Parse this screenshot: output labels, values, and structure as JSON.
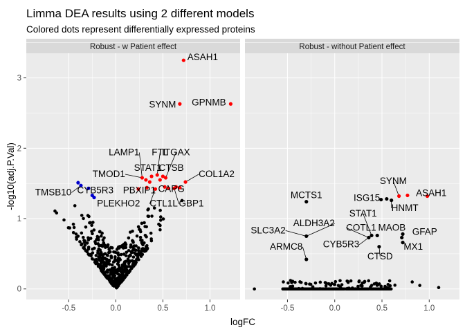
{
  "title": "Limma DEA results using 2 different models",
  "subtitle": "Colored dots represent differentially expressed proteins",
  "chart_data": {
    "type": "scatter",
    "title": "Limma DEA results using 2 different models",
    "subtitle": "Colored dots represent differentially expressed proteins",
    "xlabel": "logFC",
    "ylabel": "-log10(adj.P.Val)",
    "xlim": [
      -0.95,
      1.32
    ],
    "ylim": [
      -0.15,
      3.35
    ],
    "xticks": [
      -0.5,
      0.0,
      0.5,
      1.0
    ],
    "xtick_labels": [
      "-0.5",
      "0.0",
      "0.5",
      "1.0"
    ],
    "yticks": [
      0,
      1,
      2,
      3
    ],
    "ytick_labels": [
      "0",
      "1",
      "2",
      "3"
    ],
    "grid": true,
    "colors": {
      "not_significant": "#000000",
      "up": "#ff0000",
      "down": "#0000cd",
      "panel_bg": "#ebebeb",
      "strip_bg": "#d9d9d9",
      "grid": "#ffffff"
    },
    "panels": [
      {
        "strip": "Robust - w Patient effect",
        "points": [
          {
            "x": 0.72,
            "y": 3.25,
            "sig": "up"
          },
          {
            "x": 0.68,
            "y": 2.63,
            "sig": "up"
          },
          {
            "x": 1.22,
            "y": 2.63,
            "sig": "up"
          },
          {
            "x": 0.38,
            "y": 1.6,
            "sig": "up"
          },
          {
            "x": 0.44,
            "y": 1.62,
            "sig": "up"
          },
          {
            "x": 0.5,
            "y": 1.6,
            "sig": "up"
          },
          {
            "x": 0.53,
            "y": 1.58,
            "sig": "up"
          },
          {
            "x": 0.28,
            "y": 1.58,
            "sig": "up"
          },
          {
            "x": 0.32,
            "y": 1.55,
            "sig": "up"
          },
          {
            "x": 0.47,
            "y": 1.55,
            "sig": "up"
          },
          {
            "x": 0.36,
            "y": 1.52,
            "sig": "up"
          },
          {
            "x": 0.74,
            "y": 1.52,
            "sig": "up"
          },
          {
            "x": 0.52,
            "y": 1.45,
            "sig": "up"
          },
          {
            "x": 0.56,
            "y": 1.43,
            "sig": "up"
          },
          {
            "x": 0.64,
            "y": 1.45,
            "sig": "up"
          },
          {
            "x": 0.68,
            "y": 1.44,
            "sig": "up"
          },
          {
            "x": 0.33,
            "y": 1.44,
            "sig": "up"
          },
          {
            "x": 0.42,
            "y": 1.42,
            "sig": "up"
          },
          {
            "x": 0.62,
            "y": 1.43,
            "sig": "up"
          },
          {
            "x": 0.24,
            "y": 1.42,
            "sig": "up"
          },
          {
            "x": -0.4,
            "y": 1.51,
            "sig": "down"
          },
          {
            "x": -0.37,
            "y": 1.47,
            "sig": "down"
          },
          {
            "x": -0.29,
            "y": 1.43,
            "sig": "down"
          },
          {
            "x": -0.25,
            "y": 1.33,
            "sig": "down"
          },
          {
            "x": -0.23,
            "y": 1.3,
            "sig": "down"
          }
        ],
        "labels": [
          {
            "text": "ASAH1",
            "x": 0.76,
            "y": 3.25,
            "anchor": "start"
          },
          {
            "text": "SYNM",
            "x": 0.64,
            "y": 2.58,
            "anchor": "end"
          },
          {
            "text": "GPNMB",
            "x": 1.17,
            "y": 2.61,
            "anchor": "end"
          },
          {
            "text": "LAMP1",
            "x": 0.25,
            "y": 1.9,
            "anchor": "end"
          },
          {
            "text": "FTL",
            "x": 0.47,
            "y": 1.9,
            "anchor": "middle"
          },
          {
            "text": "ITGAX",
            "x": 0.64,
            "y": 1.9,
            "anchor": "middle"
          },
          {
            "text": "STAT1",
            "x": 0.34,
            "y": 1.68,
            "anchor": "middle"
          },
          {
            "text": "CTSB",
            "x": 0.59,
            "y": 1.68,
            "anchor": "middle"
          },
          {
            "text": "TMOD1",
            "x": 0.1,
            "y": 1.59,
            "anchor": "end"
          },
          {
            "text": "COL1A2",
            "x": 0.88,
            "y": 1.59,
            "anchor": "start"
          },
          {
            "text": "CYB5R3",
            "x": -0.41,
            "y": 1.36,
            "anchor": "start"
          },
          {
            "text": "PBXIP1",
            "x": 0.25,
            "y": 1.36,
            "anchor": "middle"
          },
          {
            "text": "CAPG",
            "x": 0.59,
            "y": 1.38,
            "anchor": "middle"
          },
          {
            "text": "TMSB10",
            "x": -0.47,
            "y": 1.33,
            "anchor": "end"
          },
          {
            "text": "PLEKHO2",
            "x": -0.2,
            "y": 1.17,
            "anchor": "start"
          },
          {
            "text": "CTL1L",
            "x": 0.36,
            "y": 1.17,
            "anchor": "start"
          },
          {
            "text": "GBP1",
            "x": 0.67,
            "y": 1.17,
            "anchor": "start"
          }
        ]
      },
      {
        "strip": "Robust - without Patient effect",
        "points": [
          {
            "x": 0.98,
            "y": 1.32,
            "sig": "up"
          },
          {
            "x": 0.77,
            "y": 1.33,
            "sig": "up"
          },
          {
            "x": 0.68,
            "y": 1.32,
            "sig": "up"
          },
          {
            "x": -0.3,
            "y": 1.24,
            "sig": "ns"
          },
          {
            "x": 0.55,
            "y": 1.28,
            "sig": "ns"
          },
          {
            "x": 0.49,
            "y": 1.27,
            "sig": "ns"
          },
          {
            "x": 0.6,
            "y": 1.26,
            "sig": "ns"
          },
          {
            "x": 0.72,
            "y": 0.78,
            "sig": "ns"
          },
          {
            "x": 0.71,
            "y": 0.73,
            "sig": "ns"
          },
          {
            "x": 0.39,
            "y": 0.76,
            "sig": "ns"
          },
          {
            "x": 0.45,
            "y": 0.76,
            "sig": "ns"
          },
          {
            "x": 0.36,
            "y": 0.73,
            "sig": "ns"
          },
          {
            "x": 0.47,
            "y": 0.6,
            "sig": "ns"
          },
          {
            "x": 0.72,
            "y": 0.66,
            "sig": "ns"
          },
          {
            "x": -0.3,
            "y": 0.75,
            "sig": "ns"
          },
          {
            "x": -0.3,
            "y": 0.42,
            "sig": "ns"
          }
        ],
        "labels": [
          {
            "text": "SYNM",
            "x": 0.62,
            "y": 1.49,
            "anchor": "middle"
          },
          {
            "text": "ASAH1",
            "x": 0.86,
            "y": 1.32,
            "anchor": "start"
          },
          {
            "text": "HNMT",
            "x": 0.6,
            "y": 1.11,
            "anchor": "start"
          },
          {
            "text": "ISG15",
            "x": 0.48,
            "y": 1.25,
            "anchor": "end"
          },
          {
            "text": "MCTS1",
            "x": -0.3,
            "y": 1.29,
            "anchor": "middle"
          },
          {
            "text": "STAT1",
            "x": 0.3,
            "y": 1.03,
            "anchor": "middle"
          },
          {
            "text": "ALDH3A2",
            "x": 0.0,
            "y": 0.89,
            "anchor": "end"
          },
          {
            "text": "COTL1",
            "x": 0.12,
            "y": 0.83,
            "anchor": "start"
          },
          {
            "text": "MAOB",
            "x": 0.46,
            "y": 0.83,
            "anchor": "start"
          },
          {
            "text": "GFAP",
            "x": 0.82,
            "y": 0.77,
            "anchor": "start"
          },
          {
            "text": "SLC3A2",
            "x": -0.52,
            "y": 0.79,
            "anchor": "end"
          },
          {
            "text": "CYB5R3",
            "x": 0.26,
            "y": 0.59,
            "anchor": "end"
          },
          {
            "text": "ARMC8",
            "x": -0.34,
            "y": 0.56,
            "anchor": "end"
          },
          {
            "text": "MX1",
            "x": 0.73,
            "y": 0.56,
            "anchor": "start"
          },
          {
            "text": "CTSD",
            "x": 0.48,
            "y": 0.42,
            "anchor": "middle"
          }
        ]
      }
    ]
  }
}
